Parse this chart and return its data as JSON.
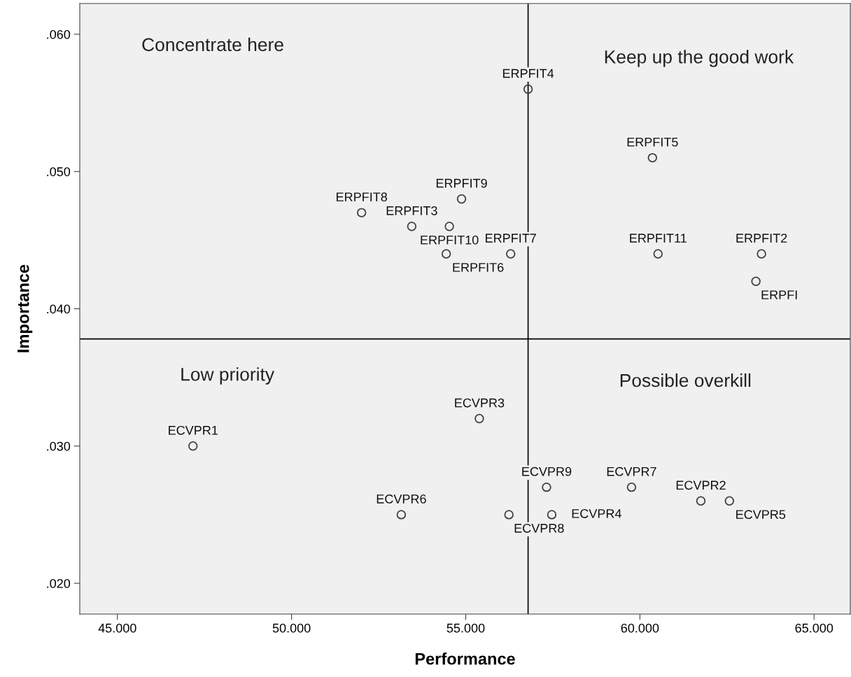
{
  "chart_data": {
    "type": "scatter",
    "xlabel": "Performance",
    "ylabel": "Importance",
    "xlim": [
      43.92,
      66.04
    ],
    "ylim": [
      0.01776,
      0.06224
    ],
    "xticks": [
      {
        "value": 45,
        "label": "45.000"
      },
      {
        "value": 50,
        "label": "50.000"
      },
      {
        "value": 55,
        "label": "55.000"
      },
      {
        "value": 60,
        "label": "60.000"
      },
      {
        "value": 65,
        "label": "65.000"
      }
    ],
    "yticks": [
      {
        "value": 0.02,
        "label": ".020"
      },
      {
        "value": 0.03,
        "label": ".030"
      },
      {
        "value": 0.04,
        "label": ".040"
      },
      {
        "value": 0.05,
        "label": ".050"
      },
      {
        "value": 0.06,
        "label": ".060"
      }
    ],
    "marker": "circle",
    "grid": false,
    "legend": false,
    "series": [
      {
        "color": "#404040",
        "x": [
          56.79,
          60.36,
          54.88,
          52.01,
          53.45,
          54.53,
          54.44,
          56.29,
          60.52,
          63.49,
          63.33,
          55.39,
          47.17,
          57.32,
          59.76,
          61.75,
          62.57,
          53.15,
          56.24,
          57.47
        ],
        "values": [
          0.056,
          0.051,
          0.048,
          0.047,
          0.046,
          0.046,
          0.044,
          0.044,
          0.044,
          0.044,
          0.042,
          0.032,
          0.03,
          0.027,
          0.027,
          0.026,
          0.026,
          0.025,
          0.025,
          0.025
        ]
      }
    ],
    "ref_lines": [
      {
        "axis": "x",
        "value": 56.79,
        "color": "#000000"
      },
      {
        "axis": "y",
        "value": 0.0378,
        "color": "#000000"
      }
    ],
    "annotations": [
      {
        "text": "ERPFIT4",
        "x": 56.79,
        "y": 0.056
      },
      {
        "text": "ERPFIT5",
        "x": 60.36,
        "y": 0.051
      },
      {
        "text": "ERPFIT9",
        "x": 54.88,
        "y": 0.048
      },
      {
        "text": "ERPFIT8",
        "x": 52.01,
        "y": 0.047
      },
      {
        "text": "ERPFIT3",
        "x": 53.45,
        "y": 0.046
      },
      {
        "text": "ERPFIT10",
        "x": 54.53,
        "y": 0.046
      },
      {
        "text": "ERPFIT6",
        "x": 54.44,
        "y": 0.044
      },
      {
        "text": "ERPFIT7",
        "x": 56.29,
        "y": 0.044
      },
      {
        "text": "ERPFIT11",
        "x": 60.52,
        "y": 0.044
      },
      {
        "text": "ERPFIT2",
        "x": 63.49,
        "y": 0.044
      },
      {
        "text": "ERPFI",
        "x": 63.33,
        "y": 0.042
      },
      {
        "text": "ECVPR3",
        "x": 55.39,
        "y": 0.032
      },
      {
        "text": "ECVPR1",
        "x": 47.17,
        "y": 0.03
      },
      {
        "text": "ECVPR9",
        "x": 57.32,
        "y": 0.027
      },
      {
        "text": "ECVPR7",
        "x": 59.76,
        "y": 0.027
      },
      {
        "text": "ECVPR2",
        "x": 61.75,
        "y": 0.026
      },
      {
        "text": "ECVPR5",
        "x": 62.57,
        "y": 0.026
      },
      {
        "text": "ECVPR6",
        "x": 53.15,
        "y": 0.025
      },
      {
        "text": "ECVPR8",
        "x": 56.24,
        "y": 0.025
      },
      {
        "text": "ECVPR4",
        "x": 57.47,
        "y": 0.025
      },
      "Concentrate here",
      "Keep up the good work",
      "Low priority",
      "Possible overkill"
    ]
  }
}
